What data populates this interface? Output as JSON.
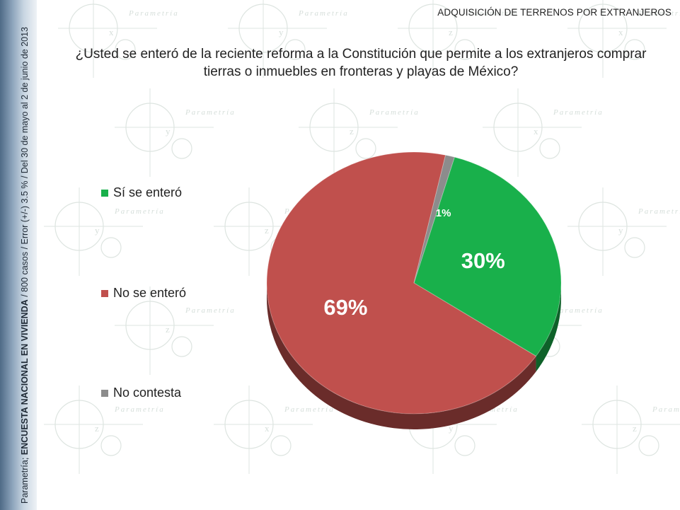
{
  "header": {
    "section_title": "ADQUISICIÓN DE TERRENOS POR EXTRANJEROS",
    "question_line1": "¿Usted se enteró de la reciente reforma a la Constitución que permite a los extranjeros comprar",
    "question_line2": "tierras o inmuebles en fronteras y playas de México?"
  },
  "sidebar": {
    "source_prefix": "Parametría; ",
    "survey_name": "ENCUESTA NACIONAL EN VIVIENDA",
    "details": " / 800 casos / Error (+/-) 3.5 % / Del 30 de mayo al 2  de junio de 2013"
  },
  "watermark": {
    "word": "Parametría",
    "glyph_x": "x",
    "glyph_y": "y",
    "glyph_z": "z"
  },
  "chart_data": {
    "type": "pie",
    "title": "",
    "categories": [
      "Sí se enteró",
      "No se enteró",
      "No contesta"
    ],
    "values": [
      30,
      69,
      1
    ],
    "labels": [
      "30%",
      "69%",
      "1%"
    ],
    "colors": [
      "#19b04b",
      "#c0504d",
      "#8c8c8c"
    ],
    "style": "3d",
    "legend_position": "left"
  }
}
